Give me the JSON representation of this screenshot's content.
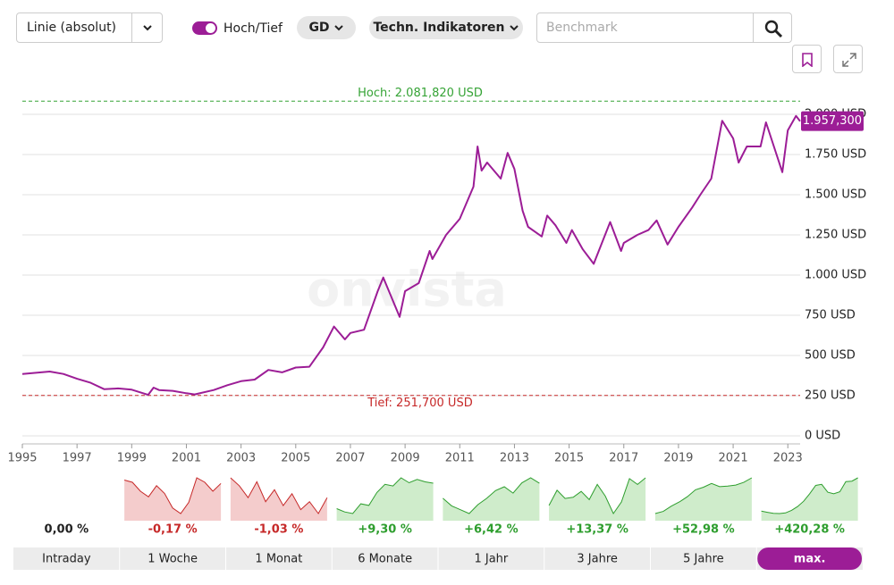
{
  "controls": {
    "chart_type": "Linie (absolut)",
    "high_low": "Hoch/Tief",
    "high_low_on": true,
    "gd": "GD",
    "indicators": "Techn. Indikatoren",
    "benchmark_placeholder": "Benchmark"
  },
  "chart_data": {
    "type": "line",
    "color": "#9c1d96",
    "x": [
      1995,
      1996,
      1996.5,
      1997,
      1997.5,
      1998,
      1998.5,
      1999,
      1999.6,
      1999.8,
      2000,
      2000.5,
      2001,
      2001.3,
      2002,
      2002.5,
      2003,
      2003.5,
      2004,
      2004.5,
      2005,
      2005.5,
      2006,
      2006.4,
      2006.8,
      2007,
      2007.5,
      2008,
      2008.2,
      2008.8,
      2009,
      2009.5,
      2009.9,
      2010,
      2010.5,
      2011,
      2011.5,
      2011.65,
      2011.8,
      2012,
      2012.5,
      2012.75,
      2013,
      2013.3,
      2013.5,
      2014,
      2014.2,
      2014.5,
      2014.9,
      2015.1,
      2015.5,
      2015.9,
      2016.5,
      2016.9,
      2017,
      2017.5,
      2017.9,
      2018.2,
      2018.6,
      2019,
      2019.5,
      2019.8,
      2020.2,
      2020.6,
      2021,
      2021.2,
      2021.5,
      2022,
      2022.2,
      2022.8,
      2023,
      2023.3,
      2023.45
    ],
    "values": [
      385,
      400,
      385,
      355,
      330,
      290,
      295,
      287,
      255,
      300,
      285,
      280,
      265,
      258,
      285,
      315,
      340,
      350,
      410,
      395,
      425,
      430,
      550,
      680,
      600,
      640,
      660,
      900,
      985,
      740,
      900,
      950,
      1150,
      1100,
      1250,
      1350,
      1550,
      1800,
      1650,
      1700,
      1600,
      1760,
      1660,
      1400,
      1300,
      1240,
      1370,
      1310,
      1200,
      1280,
      1160,
      1070,
      1330,
      1150,
      1200,
      1250,
      1280,
      1340,
      1190,
      1300,
      1420,
      1500,
      1600,
      1960,
      1850,
      1700,
      1800,
      1800,
      1950,
      1640,
      1900,
      1990,
      1957.3
    ],
    "xlim": [
      1995,
      2023.45
    ],
    "ylim": [
      -50,
      2150
    ],
    "xticks": [
      1995,
      1997,
      1999,
      2001,
      2003,
      2005,
      2007,
      2009,
      2011,
      2013,
      2015,
      2017,
      2019,
      2021,
      2023
    ],
    "yticks": [
      {
        "value": 0,
        "label": "0 USD"
      },
      {
        "value": 250,
        "label": "250 USD"
      },
      {
        "value": 500,
        "label": "500 USD"
      },
      {
        "value": 750,
        "label": "750 USD"
      },
      {
        "value": 1000,
        "label": "1.000 USD"
      },
      {
        "value": 1250,
        "label": "1.250 USD"
      },
      {
        "value": 1500,
        "label": "1.500 USD"
      },
      {
        "value": 1750,
        "label": "1.750 USD"
      },
      {
        "value": 2000,
        "label": "2.000 USD"
      }
    ],
    "grid": true,
    "annotations": [
      {
        "label": "Hoch: 2.081,820 USD",
        "value": 2081.82,
        "color": "#35a335"
      },
      {
        "label": "Tief: 251,700 USD",
        "value": 251.7,
        "color": "#c62828"
      }
    ],
    "last_value": {
      "value": 1957.3,
      "label": "1.957,300"
    },
    "watermark": "onvista"
  },
  "periods": [
    {
      "name": "Intraday",
      "change": 0,
      "change_label": "0,00 %",
      "values": []
    },
    {
      "name": "1 Woche",
      "change": -0.17,
      "change_label": "-0,17 %",
      "values": [
        1960,
        1958,
        1950,
        1945,
        1955,
        1948,
        1935,
        1930,
        1940,
        1962,
        1958,
        1950,
        1957
      ]
    },
    {
      "name": "1 Monat",
      "change": -1.03,
      "change_label": "-1,03 %",
      "values": [
        1975,
        1965,
        1950,
        1970,
        1945,
        1960,
        1940,
        1955,
        1935,
        1945,
        1930,
        1950
      ]
    },
    {
      "name": "6 Monate",
      "change": 9.3,
      "change_label": "+9,30 %",
      "values": [
        1800,
        1780,
        1770,
        1830,
        1820,
        1900,
        1950,
        1940,
        1990,
        1960,
        1980,
        1965,
        1957
      ]
    },
    {
      "name": "1 Jahr",
      "change": 6.42,
      "change_label": "+6,42 %",
      "values": [
        1840,
        1780,
        1750,
        1720,
        1790,
        1840,
        1900,
        1930,
        1880,
        1960,
        2000,
        1957
      ]
    },
    {
      "name": "3 Jahre",
      "change": 13.37,
      "change_label": "+13,37 %",
      "values": [
        1720,
        1850,
        1780,
        1790,
        1840,
        1770,
        1900,
        1800,
        1650,
        1750,
        1950,
        1900,
        1957
      ]
    },
    {
      "name": "5 Jahre",
      "change": 52.98,
      "change_label": "+52,98 %",
      "values": [
        1280,
        1320,
        1420,
        1500,
        1600,
        1730,
        1780,
        1850,
        1790,
        1800,
        1820,
        1870,
        1957
      ]
    },
    {
      "name": "max.",
      "change": 420.28,
      "change_label": "+420,28 %",
      "values": [
        385,
        330,
        280,
        270,
        300,
        420,
        600,
        850,
        1200,
        1600,
        1650,
        1280,
        1200,
        1300,
        1780,
        1800,
        1957
      ]
    }
  ],
  "active_period": 7
}
